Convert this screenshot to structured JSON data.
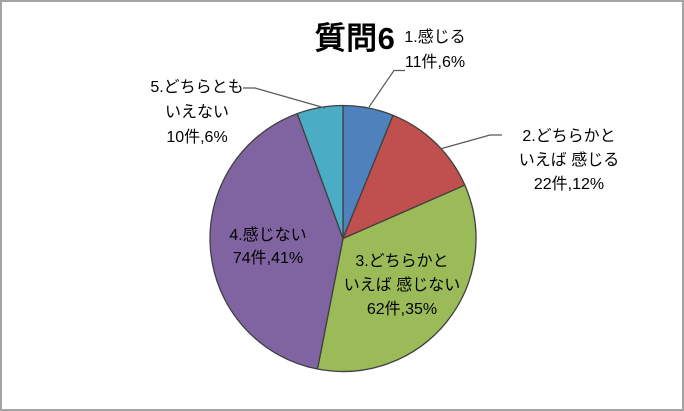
{
  "chart_data": {
    "type": "pie",
    "title": "質問6",
    "total": 179,
    "unit": "件",
    "direction": "clockwise",
    "start_angle_deg": 0,
    "legend": "none",
    "slice_border_color": "#404040",
    "leader_line_color": "#595959",
    "frame_border_color": "#a3a3a3",
    "slices": [
      {
        "label": "1.感じる",
        "value": 11,
        "percent": "6%",
        "color": "#4F81BD",
        "label_placement": "outside",
        "label_lines": [
          "1.感じる",
          "11件,6%"
        ]
      },
      {
        "label": "2.どちらかと いえば 感じる",
        "value": 22,
        "percent": "12%",
        "color": "#C0504D",
        "label_placement": "outside",
        "label_lines": [
          "2.どちらかと",
          "いえば 感じる",
          "22件,12%"
        ]
      },
      {
        "label": "3.どちらかと いえば 感じない",
        "value": 62,
        "percent": "35%",
        "color": "#9BBB59",
        "label_placement": "inside",
        "label_lines": [
          "3.どちらかと",
          "いえば 感じない",
          "62件,35%"
        ]
      },
      {
        "label": "4.感じない",
        "value": 74,
        "percent": "41%",
        "color": "#8064A2",
        "label_placement": "inside",
        "label_lines": [
          "4.感じない",
          "74件,41%"
        ]
      },
      {
        "label": "5.どちらとも いえない",
        "value": 10,
        "percent": "6%",
        "color": "#4BACC6",
        "label_placement": "outside",
        "label_lines": [
          "5.どちらとも",
          "いえない",
          "10件,6%"
        ]
      }
    ]
  }
}
